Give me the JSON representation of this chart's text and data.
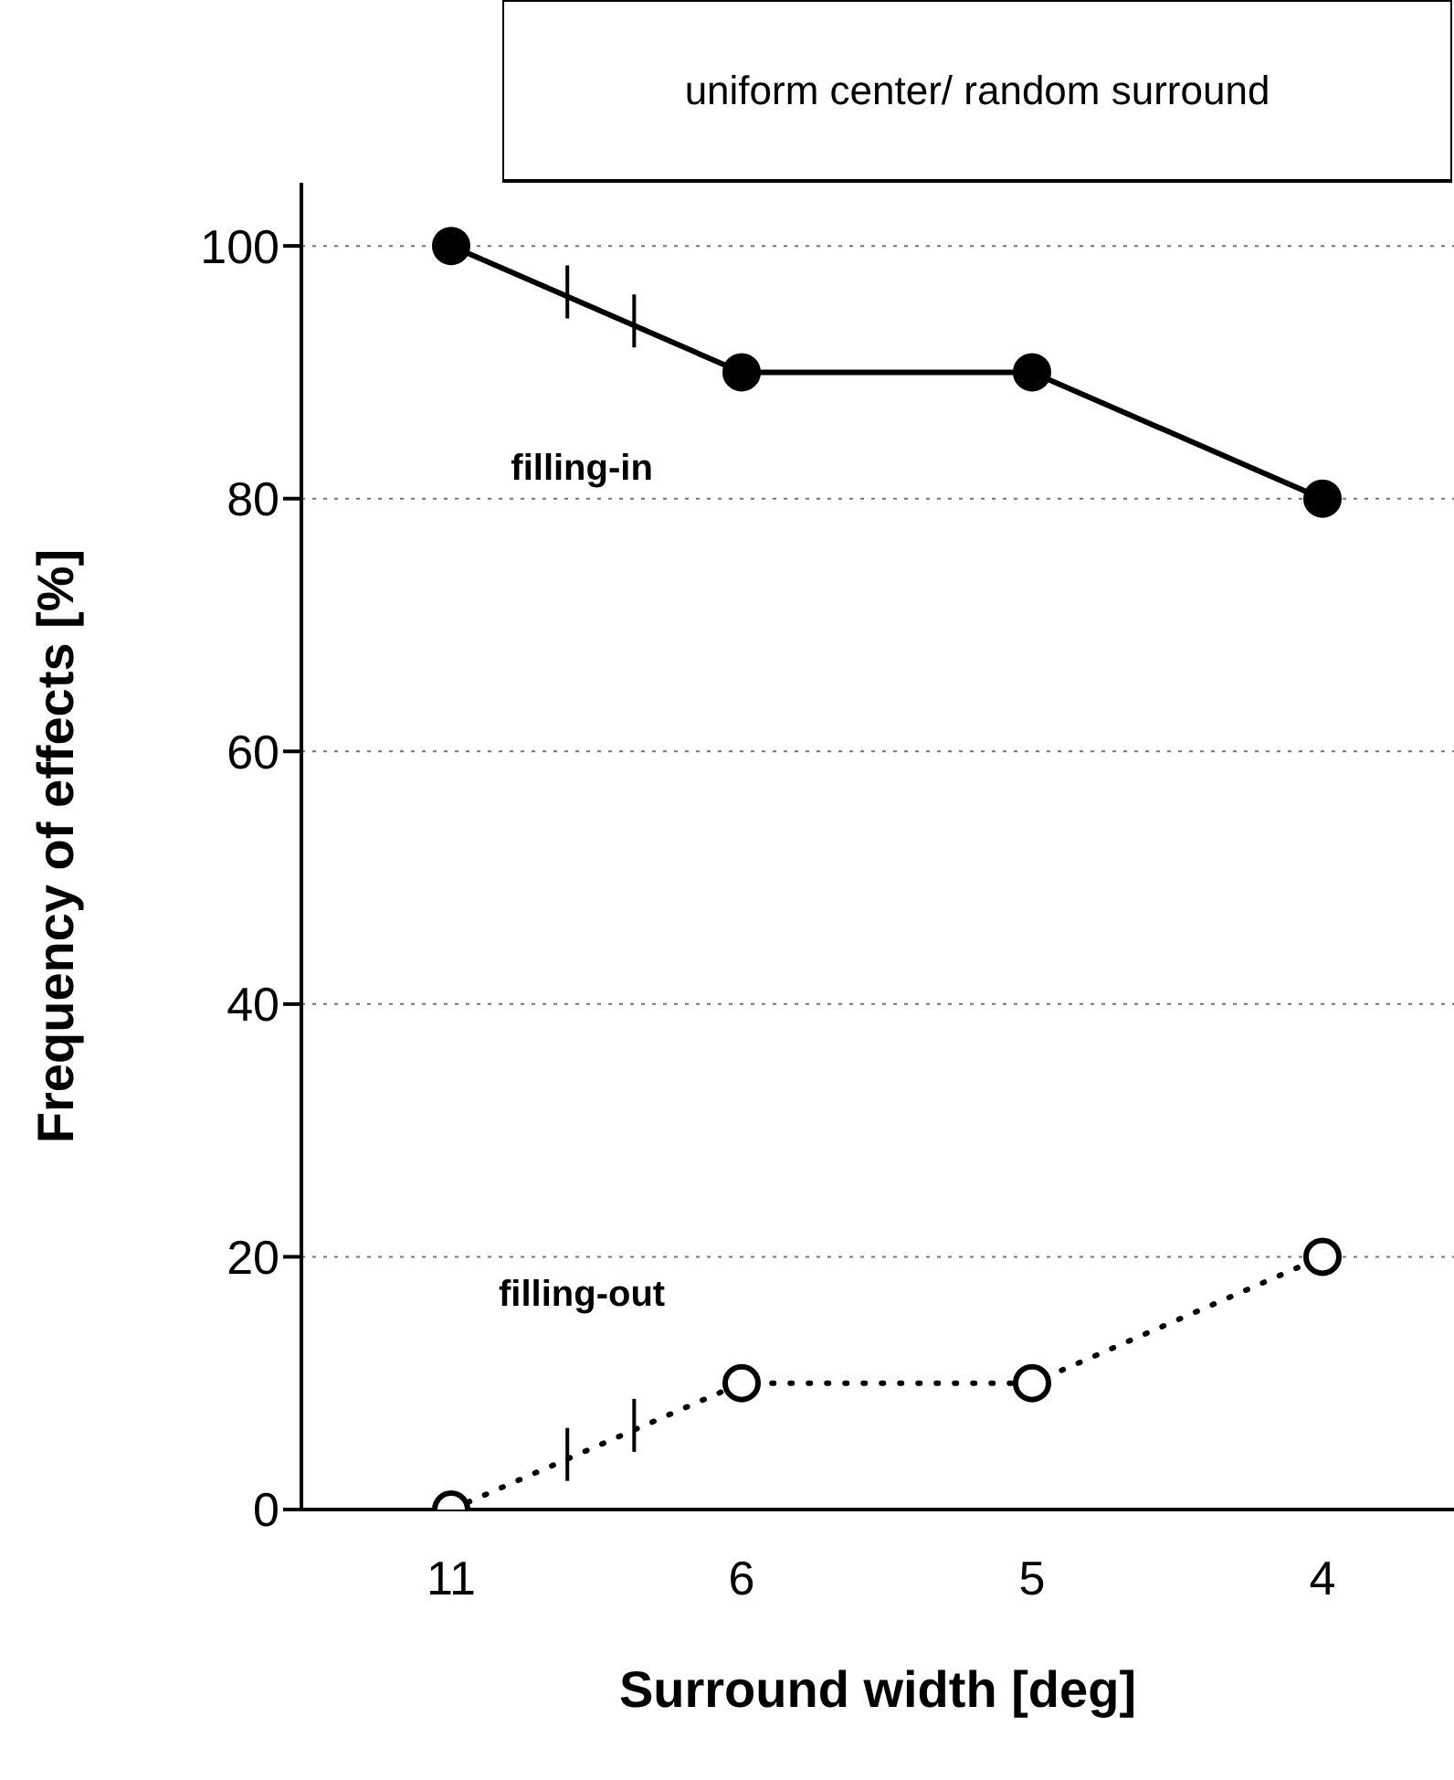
{
  "chart_data": {
    "type": "line",
    "title": "uniform center/ random surround",
    "xlabel": "Surround width [deg]",
    "ylabel": "Frequency of effects [%]",
    "categories": [
      "11",
      "6",
      "5",
      "4"
    ],
    "series": [
      {
        "name": "filling-in",
        "color": "#000000",
        "values": [
          100,
          90,
          90,
          80
        ],
        "line_style": "solid"
      },
      {
        "name": "filling-out",
        "color": "#000000",
        "values": [
          0,
          10,
          10,
          20
        ],
        "line_style": "dotted"
      }
    ],
    "ylim": [
      0,
      105
    ],
    "yticks": [
      0,
      20,
      40,
      60,
      80,
      100
    ],
    "grid": "y",
    "marker": "circle"
  }
}
